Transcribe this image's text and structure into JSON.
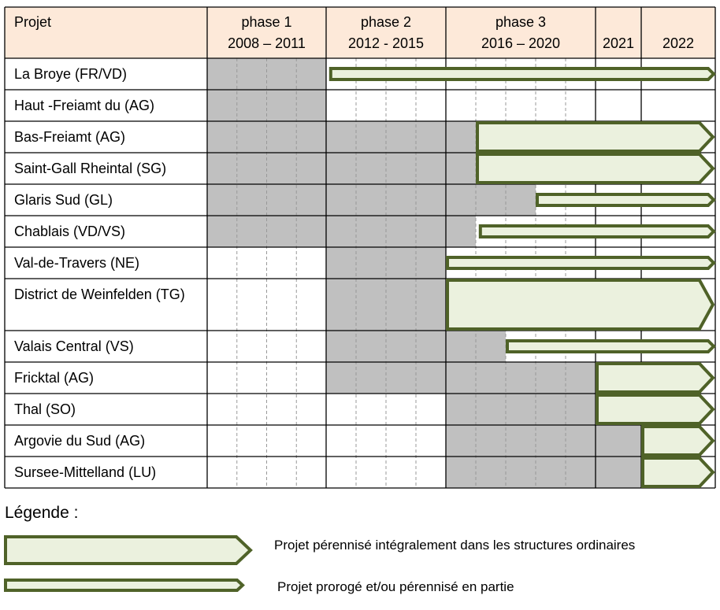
{
  "header": {
    "project_label": "Projet",
    "columns": [
      {
        "title": "phase 1",
        "years": "2008 – 2011"
      },
      {
        "title": "phase 2",
        "years": "2012 - 2015"
      },
      {
        "title": "phase 3",
        "years": "2016 – 2020"
      },
      {
        "title": "",
        "years": "2021"
      },
      {
        "title": "",
        "years": "2022"
      }
    ]
  },
  "chart_data": {
    "type": "gantt",
    "year_range": [
      2008,
      2023
    ],
    "rows": [
      {
        "name": "La Broye (FR/VD)",
        "grey": [
          2008,
          2012
        ],
        "arrow_start": 2012.1,
        "arrow_type": "partial"
      },
      {
        "name": "Haut -Freiamt du (AG)",
        "grey": [
          2008,
          2012
        ],
        "arrow_start": null,
        "arrow_type": null
      },
      {
        "name": "Bas-Freiamt (AG)",
        "grey": [
          2008,
          2017
        ],
        "arrow_start": 2017,
        "arrow_type": "full"
      },
      {
        "name": "Saint-Gall Rheintal (SG)",
        "grey": [
          2008,
          2017
        ],
        "arrow_start": 2017,
        "arrow_type": "full"
      },
      {
        "name": "Glaris Sud (GL)",
        "grey": [
          2008,
          2019
        ],
        "arrow_start": 2019,
        "arrow_type": "partial"
      },
      {
        "name": "Chablais (VD/VS)",
        "grey": [
          2008,
          2017
        ],
        "arrow_start": 2017.1,
        "arrow_type": "partial"
      },
      {
        "name": "Val-de-Travers (NE)",
        "grey": [
          2012,
          2016
        ],
        "arrow_start": 2016,
        "arrow_type": "partial"
      },
      {
        "name": "District de Weinfelden (TG)",
        "grey": [
          2012,
          2016
        ],
        "arrow_start": 2016,
        "arrow_type": "full"
      },
      {
        "name": "Valais Central (VS)",
        "grey": [
          2012,
          2018
        ],
        "arrow_start": 2018,
        "arrow_type": "partial"
      },
      {
        "name": "Fricktal (AG)",
        "grey": [
          2012,
          2021
        ],
        "arrow_start": 2021,
        "arrow_type": "full"
      },
      {
        "name": "Thal (SO)",
        "grey": [
          2016,
          2021
        ],
        "arrow_start": 2021,
        "arrow_type": "full"
      },
      {
        "name": "Argovie du Sud (AG)",
        "grey": [
          2016,
          2022
        ],
        "arrow_start": 2022,
        "arrow_type": "full"
      },
      {
        "name": "Sursee-Mittelland (LU)",
        "grey": [
          2016,
          2022
        ],
        "arrow_start": 2022,
        "arrow_type": "full"
      }
    ]
  },
  "legend": {
    "title": "Légende :",
    "full": "Projet pérennisé intégralement dans les structures ordinaires",
    "partial": "Projet prorogé et/ou pérennisé en partie"
  },
  "colors": {
    "header_bg": "#fde9d9",
    "grey": "#c0c0c0",
    "arrow_fill": "#ebf1de",
    "arrow_stroke": "#4f6228"
  }
}
